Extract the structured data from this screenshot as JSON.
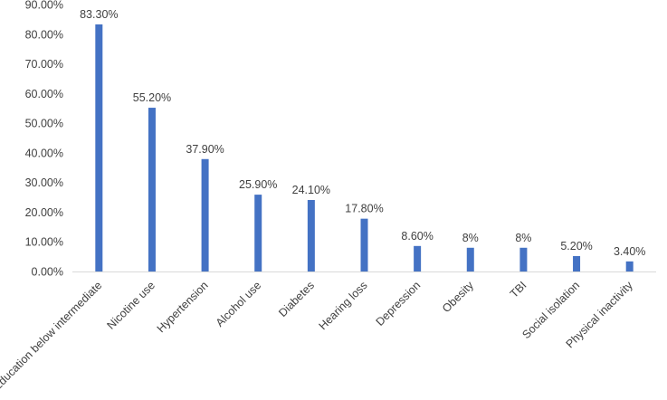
{
  "chart_data": {
    "type": "bar",
    "title": "",
    "xlabel": "",
    "ylabel": "",
    "ylim": [
      0,
      90
    ],
    "y_ticks": [
      "0.00%",
      "10.00%",
      "20.00%",
      "30.00%",
      "40.00%",
      "50.00%",
      "60.00%",
      "70.00%",
      "80.00%",
      "90.00%"
    ],
    "grid": false,
    "legend": "none",
    "bar_color": "#4472c4",
    "categories": [
      "Education below intermediate",
      "Nicotine use",
      "Hypertension",
      "Alcohol use",
      "Diabetes",
      "Hearing loss",
      "Depression",
      "Obesity",
      "TBI",
      "Social isolation",
      "Physical inactivity"
    ],
    "values": [
      83.3,
      55.2,
      37.9,
      25.9,
      24.1,
      17.8,
      8.6,
      8,
      8,
      5.2,
      3.4
    ],
    "data_labels": [
      "83.30%",
      "55.20%",
      "37.90%",
      "25.90%",
      "24.10%",
      "17.80%",
      "8.60%",
      "8%",
      "8%",
      "5.20%",
      "3.40%"
    ]
  }
}
